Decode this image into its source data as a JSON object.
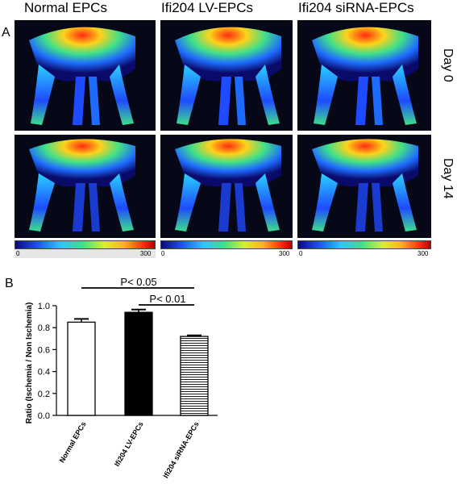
{
  "panel_a": {
    "letter": "A",
    "columns": [
      "Normal EPCs",
      "Ifi204 LV-EPCs",
      "Ifi204 siRNA-EPCs"
    ],
    "rows": [
      "Day 0",
      "Day 14"
    ],
    "colorbar": {
      "min": "0",
      "max": "300"
    }
  },
  "panel_b": {
    "letter": "B",
    "significance": [
      "P< 0.05",
      "P< 0.01"
    ]
  },
  "chart_data": {
    "type": "bar",
    "categories": [
      "Normal EPCs",
      "Ifi204 LV-EPCs",
      "Ifi204 siRNA-EPCs"
    ],
    "values": [
      0.85,
      0.94,
      0.72
    ],
    "errors": [
      0.03,
      0.025,
      0.01
    ],
    "fills": [
      "white",
      "black",
      "horizontal-lines"
    ],
    "ylabel": "Ratio (Ischemia / Non Ischemia)",
    "ylim": [
      0.0,
      1.0
    ],
    "yticks": [
      "0.0",
      "0.2",
      "0.4",
      "0.6",
      "0.8",
      "1.0"
    ],
    "grid": false
  }
}
